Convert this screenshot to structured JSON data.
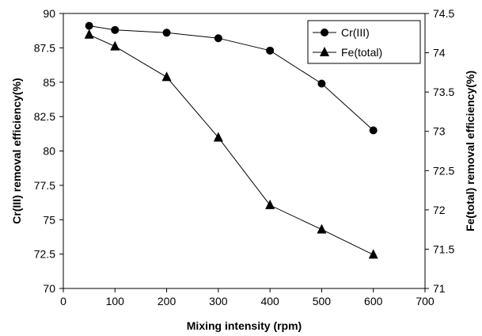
{
  "chart_data": {
    "type": "line",
    "title": "",
    "xlabel": "Mixing intensity (rpm)",
    "ylabel_left": "Cr(III) removal efficiency(%)",
    "ylabel_right": "Fe(total) removal efficiency(%)",
    "xlim": [
      0,
      700
    ],
    "ylim_left": [
      70,
      90
    ],
    "ylim_right": [
      71,
      74.5
    ],
    "x_ticks": [
      "0",
      "100",
      "200",
      "300",
      "400",
      "500",
      "600",
      "700"
    ],
    "y_left_ticks": [
      "70",
      "72.5",
      "75",
      "77.5",
      "80",
      "82.5",
      "85",
      "87.5",
      "90"
    ],
    "y_right_ticks": [
      "71",
      "71.5",
      "72",
      "72.5",
      "73",
      "73.5",
      "74",
      "74.5"
    ],
    "grid": false,
    "legend_position": "top-right",
    "series": [
      {
        "name": "Cr(III)",
        "axis": "left",
        "marker": "circle",
        "x": [
          50,
          100,
          200,
          300,
          400,
          500,
          600
        ],
        "values": [
          89.1,
          88.8,
          88.6,
          88.2,
          87.3,
          84.9,
          81.5
        ]
      },
      {
        "name": "Fe(total)",
        "axis": "right",
        "marker": "triangle",
        "x": [
          50,
          100,
          200,
          300,
          400,
          500,
          600
        ],
        "values": [
          74.23,
          74.08,
          73.69,
          72.92,
          72.06,
          71.75,
          71.43
        ]
      }
    ]
  }
}
